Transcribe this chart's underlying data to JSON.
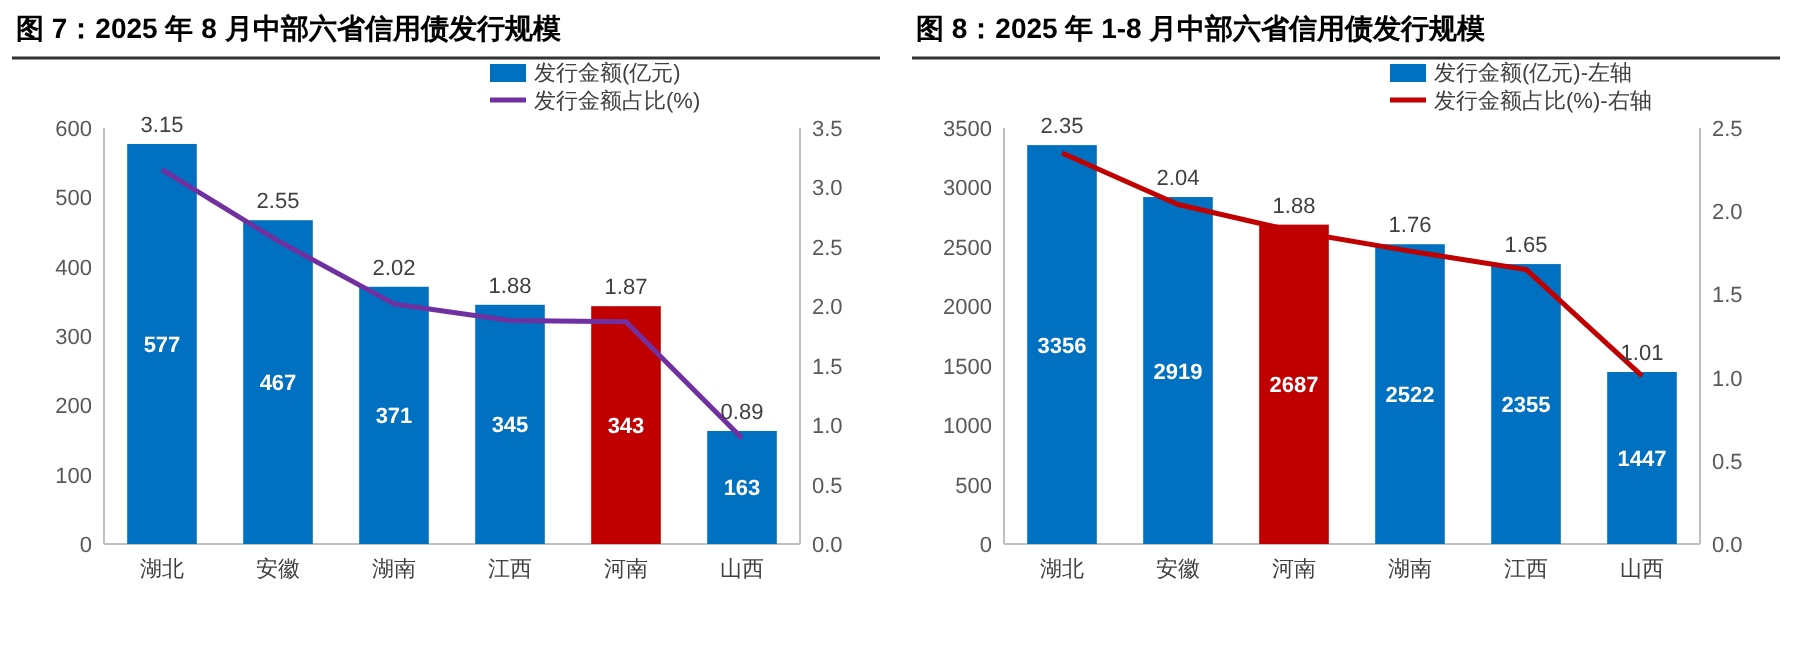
{
  "chart_data": [
    {
      "type": "bar",
      "title": "图 7：2025 年 8 月中部六省信用债发行规模",
      "categories": [
        "湖北",
        "安徽",
        "湖南",
        "江西",
        "河南",
        "山西"
      ],
      "series": [
        {
          "name": "发行金额(亿元)",
          "color": "#0070c0",
          "colors": [
            "#0070c0",
            "#0070c0",
            "#0070c0",
            "#0070c0",
            "#c00000",
            "#0070c0"
          ],
          "values": [
            577,
            467,
            371,
            345,
            343,
            163
          ]
        },
        {
          "name": "发行金额占比(%)",
          "type": "line",
          "axis": "y2",
          "color": "#7030a0",
          "values": [
            3.15,
            2.55,
            2.02,
            1.88,
            1.87,
            0.89
          ]
        }
      ],
      "ylim": [
        0,
        600
      ],
      "yticks": [
        0,
        100,
        200,
        300,
        400,
        500,
        600
      ],
      "y2lim": [
        0,
        3.5
      ],
      "y2ticks": [
        {
          "value": 0,
          "label": "0.0"
        },
        {
          "value": 0.5,
          "label": "0.5"
        },
        {
          "value": 1,
          "label": "1.0"
        },
        {
          "value": 1.5,
          "label": "1.5"
        },
        {
          "value": 2,
          "label": "2.0"
        },
        {
          "value": 2.5,
          "label": "2.5"
        },
        {
          "value": 3,
          "label": "3.0"
        },
        {
          "value": 3.5,
          "label": "3.5"
        }
      ],
      "data_labels": true,
      "legend": "top right",
      "grid": false,
      "marker": "none"
    },
    {
      "type": "bar",
      "title": "图 8：2025 年 1-8 月中部六省信用债发行规模",
      "categories": [
        "湖北",
        "安徽",
        "河南",
        "湖南",
        "江西",
        "山西"
      ],
      "series": [
        {
          "name": "发行金额(亿元)-左轴",
          "color": "#0070c0",
          "colors": [
            "#0070c0",
            "#0070c0",
            "#c00000",
            "#0070c0",
            "#0070c0",
            "#0070c0"
          ],
          "values": [
            3356,
            2919,
            2687,
            2522,
            2355,
            1447
          ]
        },
        {
          "name": "发行金额占比(%)-右轴",
          "type": "line",
          "axis": "y2",
          "color": "#c00000",
          "values": [
            2.35,
            2.04,
            1.88,
            1.76,
            1.65,
            1.01
          ]
        }
      ],
      "ylim": [
        0,
        3500
      ],
      "yticks": [
        0,
        500,
        1000,
        1500,
        2000,
        2500,
        3000,
        3500
      ],
      "y2lim": [
        0,
        2.5
      ],
      "y2ticks": [
        {
          "value": 0,
          "label": "0.0"
        },
        {
          "value": 0.5,
          "label": "0.5"
        },
        {
          "value": 1,
          "label": "1.0"
        },
        {
          "value": 1.5,
          "label": "1.5"
        },
        {
          "value": 2,
          "label": "2.0"
        },
        {
          "value": 2.5,
          "label": "2.5"
        }
      ],
      "data_labels": true,
      "legend": "top right",
      "grid": false,
      "marker": "none"
    }
  ]
}
